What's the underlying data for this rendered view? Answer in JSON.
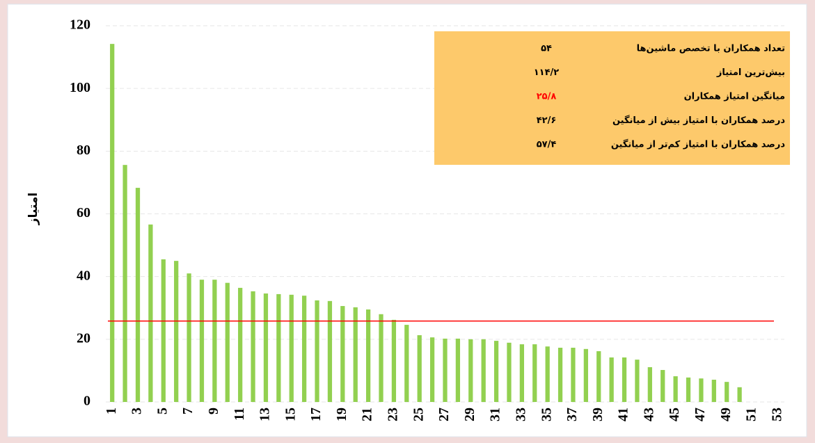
{
  "chart_data": {
    "type": "bar",
    "y_label": "امتیاز",
    "categories": [
      "1",
      null,
      "3",
      null,
      "5",
      null,
      "7",
      null,
      "9",
      null,
      "11",
      null,
      "13",
      null,
      "15",
      null,
      "17",
      null,
      "19",
      null,
      "21",
      null,
      "23",
      null,
      "25",
      null,
      "27",
      null,
      "29",
      null,
      "31",
      null,
      "33",
      null,
      "35",
      null,
      "37",
      null,
      "39",
      null,
      "41",
      null,
      "43",
      null,
      "45",
      null,
      "47",
      null,
      "49",
      null,
      "51",
      null,
      "53"
    ],
    "values": [
      114.2,
      75.6,
      68.3,
      56.6,
      45.5,
      45,
      41,
      39,
      39,
      38,
      36.4,
      35.3,
      34.6,
      34.4,
      34.2,
      33.9,
      32.4,
      32.2,
      30.6,
      30.2,
      29.5,
      28,
      26.2,
      24.6,
      21.3,
      20.6,
      20.2,
      20.2,
      20,
      20,
      19.5,
      18.9,
      18.4,
      18.4,
      17.7,
      17.3,
      17.3,
      16.9,
      16.2,
      14.2,
      14.2,
      13.5,
      11.1,
      10.2,
      8.2,
      7.8,
      7.5,
      7.1,
      6.4,
      4.7,
      null,
      null,
      null
    ],
    "color": "#92d050",
    "ylim": [
      0,
      120
    ],
    "yticks": [
      0,
      20,
      40,
      60,
      80,
      100,
      120
    ],
    "grid": true,
    "reference_line": {
      "value": 25.8,
      "color": "#ff0000"
    },
    "summary_table": {
      "color": "#fdc96b",
      "rows": [
        {
          "label": "تعداد همکاران با تخصص ماشین‌ها",
          "value": "۵۴"
        },
        {
          "label": "بیش‌ترین امتیاز",
          "value": "۱۱۴/۲"
        },
        {
          "label": "میانگین امتیاز همکاران",
          "value": "۲۵/۸",
          "color": "#ff0000"
        },
        {
          "label": "درصد همکاران با امتیاز بیش از میانگین",
          "value": "۴۲/۶"
        },
        {
          "label": "درصد همکاران با امتیاز کم‌تر از میانگین",
          "value": "۵۷/۴"
        }
      ]
    }
  }
}
